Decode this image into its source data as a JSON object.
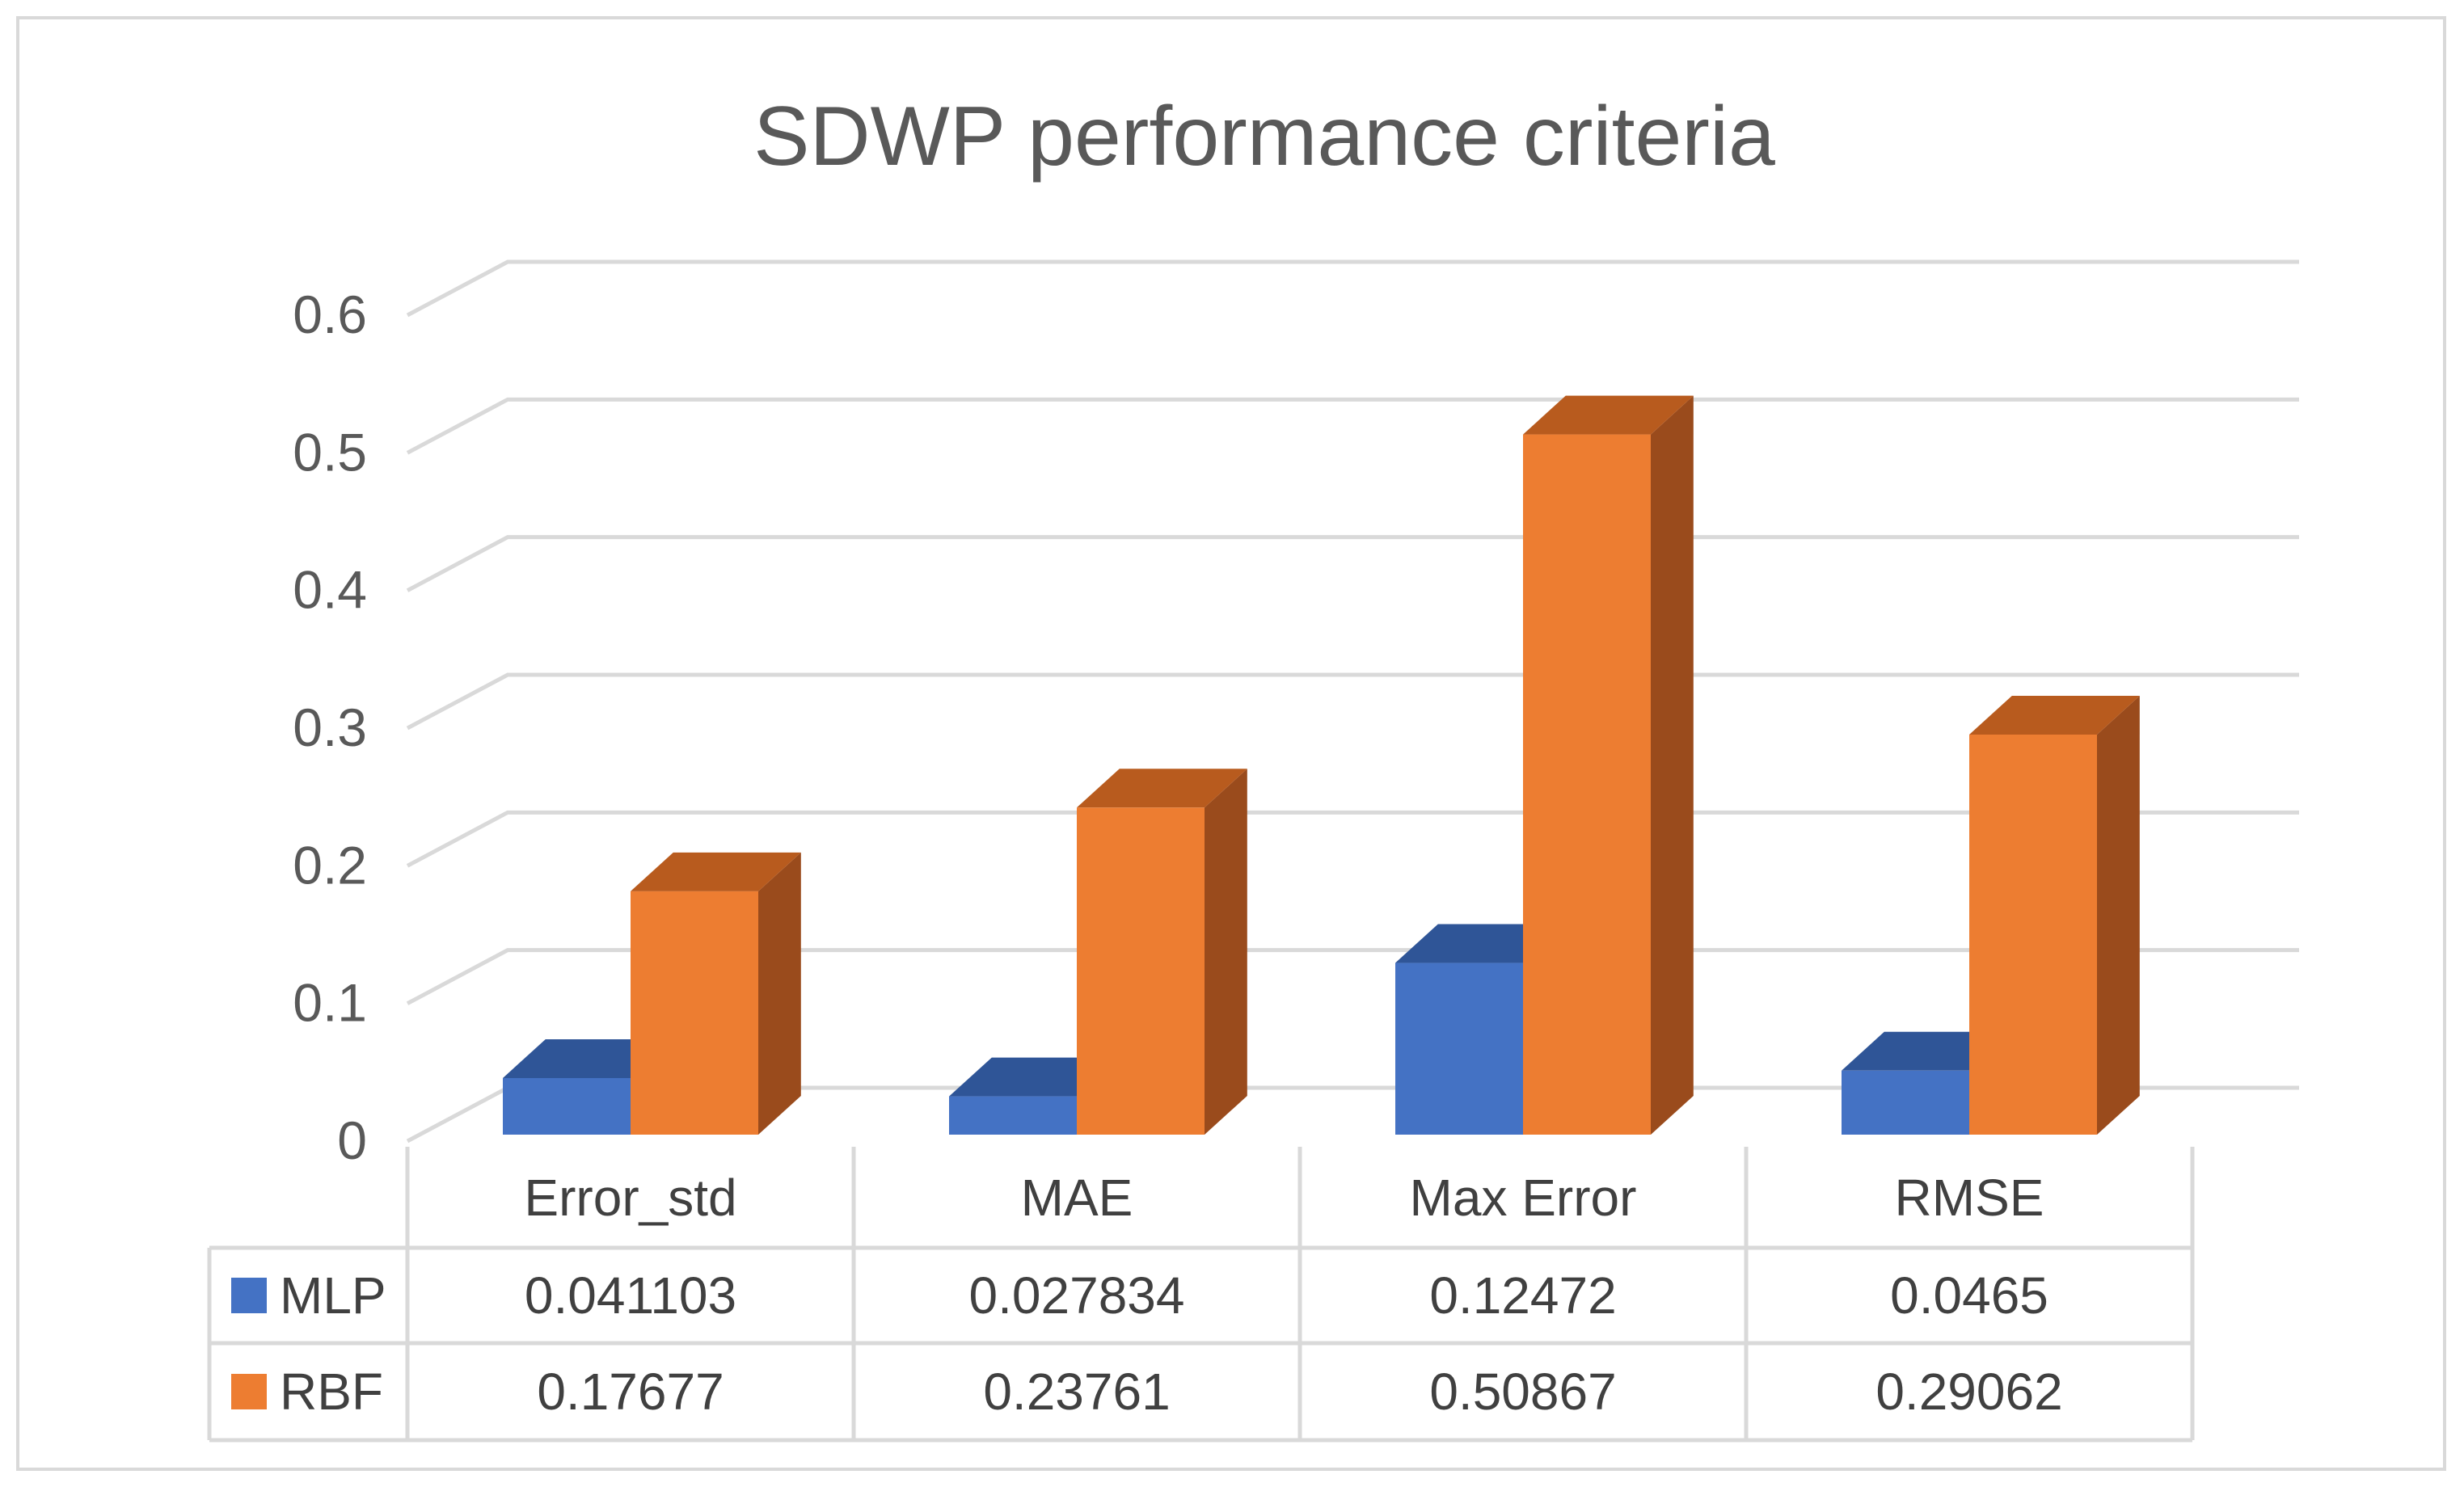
{
  "chart_data": {
    "type": "bar",
    "title": "SDWP performance criteria",
    "categories": [
      "Error_std",
      "MAE",
      "Max Error",
      "RMSE"
    ],
    "series": [
      {
        "name": "MLP",
        "values": [
          0.041103,
          0.027834,
          0.12472,
          0.0465
        ],
        "labels": [
          "0.041103",
          "0.027834",
          "0.12472",
          "0.0465"
        ]
      },
      {
        "name": "RBF",
        "values": [
          0.17677,
          0.23761,
          0.50867,
          0.29062
        ],
        "labels": [
          "0.17677",
          "0.23761",
          "0.50867",
          "0.29062"
        ]
      }
    ],
    "yticks": [
      "0",
      "0.1",
      "0.2",
      "0.3",
      "0.4",
      "0.5",
      "0.6"
    ],
    "ylim": [
      0,
      0.6
    ],
    "xlabel": "",
    "ylabel": "",
    "grid": true,
    "legend": "data-table",
    "three_d": true
  },
  "colors": {
    "MLP": {
      "front": "#4472c4",
      "top": "#2f5597",
      "side": "#2e5190"
    },
    "RBF": {
      "front": "#ed7d31",
      "top": "#b85b1e",
      "side": "#9a4b1c"
    },
    "grid": "#d9d9d9",
    "text": "#595959"
  }
}
